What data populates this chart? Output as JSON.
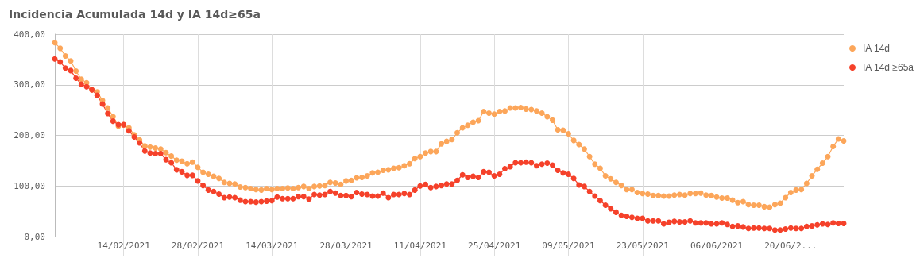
{
  "chart_data": {
    "type": "line",
    "title": "Incidencia Acumulada 14d y IA 14d≥65a",
    "x": [
      "2021-02-01",
      "2021-02-02",
      "2021-02-03",
      "2021-02-04",
      "2021-02-05",
      "2021-02-06",
      "2021-02-07",
      "2021-02-08",
      "2021-02-09",
      "2021-02-10",
      "2021-02-11",
      "2021-02-12",
      "2021-02-13",
      "2021-02-14",
      "2021-02-15",
      "2021-02-16",
      "2021-02-17",
      "2021-02-18",
      "2021-02-19",
      "2021-02-20",
      "2021-02-21",
      "2021-02-22",
      "2021-02-23",
      "2021-02-24",
      "2021-02-25",
      "2021-02-26",
      "2021-02-27",
      "2021-02-28",
      "2021-03-01",
      "2021-03-02",
      "2021-03-03",
      "2021-03-04",
      "2021-03-05",
      "2021-03-06",
      "2021-03-07",
      "2021-03-08",
      "2021-03-09",
      "2021-03-10",
      "2021-03-11",
      "2021-03-12",
      "2021-03-13",
      "2021-03-14",
      "2021-03-15",
      "2021-03-16",
      "2021-03-17",
      "2021-03-18",
      "2021-03-19",
      "2021-03-20",
      "2021-03-21",
      "2021-03-22",
      "2021-03-23",
      "2021-03-24",
      "2021-03-25",
      "2021-03-26",
      "2021-03-27",
      "2021-03-28",
      "2021-03-29",
      "2021-03-30",
      "2021-03-31",
      "2021-04-01",
      "2021-04-02",
      "2021-04-03",
      "2021-04-04",
      "2021-04-05",
      "2021-04-06",
      "2021-04-07",
      "2021-04-08",
      "2021-04-09",
      "2021-04-10",
      "2021-04-11",
      "2021-04-12",
      "2021-04-13",
      "2021-04-14",
      "2021-04-15",
      "2021-04-16",
      "2021-04-17",
      "2021-04-18",
      "2021-04-19",
      "2021-04-20",
      "2021-04-21",
      "2021-04-22",
      "2021-04-23",
      "2021-04-24",
      "2021-04-25",
      "2021-04-26",
      "2021-04-27",
      "2021-04-28",
      "2021-04-29",
      "2021-04-30",
      "2021-05-01",
      "2021-05-02",
      "2021-05-03",
      "2021-05-04",
      "2021-05-05",
      "2021-05-06",
      "2021-05-07",
      "2021-05-08",
      "2021-05-09",
      "2021-05-10",
      "2021-05-11",
      "2021-05-12",
      "2021-05-13",
      "2021-05-14",
      "2021-05-15",
      "2021-05-16",
      "2021-05-17",
      "2021-05-18",
      "2021-05-19",
      "2021-05-20",
      "2021-05-21",
      "2021-05-22",
      "2021-05-23",
      "2021-05-24",
      "2021-05-25",
      "2021-05-26",
      "2021-05-27",
      "2021-05-28",
      "2021-05-29",
      "2021-05-30",
      "2021-05-31",
      "2021-06-01",
      "2021-06-02",
      "2021-06-03",
      "2021-06-04",
      "2021-06-05",
      "2021-06-06",
      "2021-06-07",
      "2021-06-08",
      "2021-06-09",
      "2021-06-10",
      "2021-06-11",
      "2021-06-12",
      "2021-06-13",
      "2021-06-14",
      "2021-06-15",
      "2021-06-16",
      "2021-06-17",
      "2021-06-18",
      "2021-06-19",
      "2021-06-20",
      "2021-06-21",
      "2021-06-22",
      "2021-06-23",
      "2021-06-24",
      "2021-06-25",
      "2021-06-26",
      "2021-06-27",
      "2021-06-28",
      "2021-06-29",
      "2021-06-30"
    ],
    "series": [
      {
        "name": "IA 14d",
        "color": "#fca65a",
        "values": [
          383,
          372,
          357,
          347,
          327,
          311,
          304,
          290,
          286,
          269,
          254,
          237,
          218,
          221,
          215,
          201,
          191,
          179,
          177,
          175,
          173,
          166,
          159,
          151,
          149,
          144,
          147,
          137,
          127,
          123,
          119,
          115,
          107,
          105,
          104,
          98,
          97,
          95,
          93,
          92,
          95,
          93,
          95,
          95,
          96,
          95,
          97,
          99,
          95,
          99,
          100,
          101,
          107,
          106,
          103,
          110,
          111,
          116,
          117,
          120,
          126,
          127,
          131,
          132,
          135,
          136,
          140,
          144,
          154,
          158,
          165,
          168,
          168,
          183,
          188,
          192,
          205,
          215,
          220,
          226,
          229,
          247,
          244,
          242,
          247,
          248,
          254,
          254,
          255,
          252,
          251,
          248,
          244,
          237,
          230,
          211,
          210,
          203,
          190,
          182,
          173,
          158,
          143,
          135,
          120,
          114,
          107,
          101,
          93,
          93,
          87,
          85,
          84,
          81,
          81,
          80,
          80,
          82,
          83,
          82,
          85,
          85,
          86,
          82,
          81,
          78,
          76,
          76,
          72,
          67,
          69,
          63,
          62,
          62,
          59,
          58,
          63,
          66,
          77,
          87,
          92,
          93,
          105,
          120,
          133,
          145,
          158,
          178,
          193,
          189
        ]
      },
      {
        "name": "IA 14d ≥65a",
        "color": "#f5412a",
        "values": [
          351,
          345,
          333,
          328,
          313,
          301,
          296,
          290,
          279,
          262,
          243,
          228,
          221,
          221,
          209,
          197,
          185,
          169,
          165,
          164,
          164,
          152,
          146,
          132,
          128,
          121,
          121,
          110,
          101,
          92,
          89,
          84,
          77,
          78,
          77,
          72,
          69,
          69,
          68,
          69,
          70,
          71,
          78,
          75,
          75,
          75,
          79,
          79,
          74,
          83,
          82,
          83,
          89,
          86,
          81,
          81,
          79,
          87,
          84,
          83,
          80,
          80,
          86,
          77,
          83,
          83,
          85,
          83,
          92,
          100,
          103,
          97,
          99,
          101,
          104,
          104,
          111,
          122,
          117,
          119,
          117,
          128,
          127,
          120,
          123,
          134,
          138,
          146,
          146,
          147,
          146,
          140,
          143,
          145,
          141,
          131,
          126,
          123,
          115,
          102,
          99,
          89,
          80,
          71,
          62,
          55,
          48,
          42,
          40,
          38,
          36,
          36,
          31,
          31,
          31,
          25,
          28,
          30,
          29,
          29,
          31,
          27,
          27,
          27,
          25,
          25,
          27,
          24,
          20,
          21,
          19,
          16,
          17,
          17,
          16,
          16,
          13,
          13,
          15,
          17,
          16,
          16,
          20,
          21,
          23,
          25,
          24,
          27,
          26,
          26
        ]
      }
    ],
    "xlim": [
      "2021-02-01",
      "2021-06-30"
    ],
    "xticks": [
      {
        "value": "2021-02-14",
        "label": "14/02/2021"
      },
      {
        "value": "2021-02-28",
        "label": "28/02/2021"
      },
      {
        "value": "2021-03-14",
        "label": "14/03/2021"
      },
      {
        "value": "2021-03-28",
        "label": "28/03/2021"
      },
      {
        "value": "2021-04-11",
        "label": "11/04/2021"
      },
      {
        "value": "2021-04-25",
        "label": "25/04/2021"
      },
      {
        "value": "2021-05-09",
        "label": "09/05/2021"
      },
      {
        "value": "2021-05-23",
        "label": "23/05/2021"
      },
      {
        "value": "2021-06-06",
        "label": "06/06/2021"
      },
      {
        "value": "2021-06-20",
        "label": "20/06/2..."
      }
    ],
    "ylim": [
      0,
      400
    ],
    "yticks": [
      {
        "value": 0,
        "label": "0,00"
      },
      {
        "value": 100,
        "label": "100,00"
      },
      {
        "value": 200,
        "label": "200,00"
      },
      {
        "value": 300,
        "label": "300,00"
      },
      {
        "value": 400,
        "label": "400,00"
      }
    ],
    "grid": true,
    "legend": "top right",
    "marker": "circle",
    "line_style": "solid"
  }
}
